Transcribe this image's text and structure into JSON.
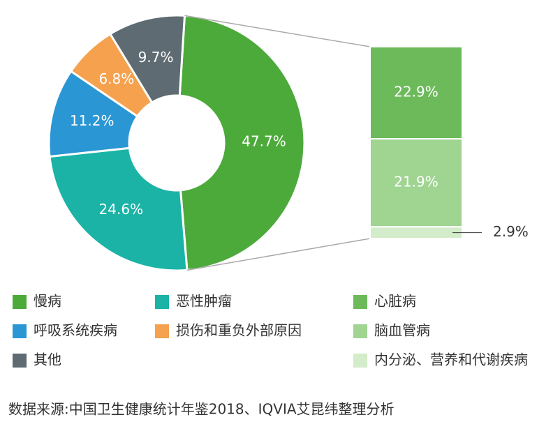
{
  "chart_data": {
    "type": "pie",
    "categories": [
      "慢病",
      "恶性肿瘤",
      "呼吸系统疾病",
      "损伤和重负外部原因",
      "其他"
    ],
    "values": [
      47.7,
      24.6,
      11.2,
      6.8,
      9.7
    ],
    "value_labels": [
      "47.7%",
      "24.6%",
      "11.2%",
      "6.8%",
      "9.7%"
    ],
    "colors": [
      "#4caa3a",
      "#1ab3a6",
      "#2a96d4",
      "#f5a14e",
      "#5e6b72"
    ],
    "breakdown": {
      "categories": [
        "心脏病",
        "脑血管病",
        "内分泌、营养和代谢疾病"
      ],
      "values": [
        22.9,
        21.9,
        2.9
      ],
      "value_labels": [
        "22.9%",
        "21.9%",
        "2.9%"
      ],
      "colors": [
        "#6cba5a",
        "#9fd491",
        "#d3ecc9"
      ]
    },
    "source": "数据来源:中国卫生健康统计年鉴2018、IQVIA艾昆纬整理分析"
  }
}
